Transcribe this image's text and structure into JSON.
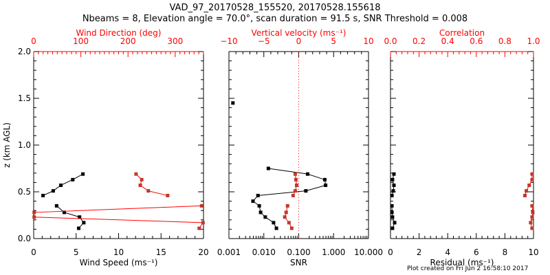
{
  "title": "VAD_97_20170528_155520, 20170528.155618",
  "subtitle": "Nbeams = 8, Elevation angle = 70.0°, scan duration = 91.5 s, SNR Threshold = 0.008",
  "footer": "Plot created on Fri Jun  2 16:58:10 2017",
  "colors": {
    "axis": "#000000",
    "secondary_axis": "#ff0000",
    "secondary_points": "#c0392b",
    "primary": "#000000"
  },
  "chart_data": [
    {
      "type": "line",
      "ylabel": "z (km AGL)",
      "ylim": [
        0,
        2.0
      ],
      "yticks": [
        "0.0",
        "0.5",
        "1.0",
        "1.5",
        "2.0"
      ],
      "xlabel": "Wind Speed (ms⁻¹)",
      "xlim": [
        0,
        20
      ],
      "xticks": [
        "0",
        "5",
        "10",
        "15",
        "20"
      ],
      "top_label": "Wind Direction (deg)",
      "top_lim": [
        0,
        360
      ],
      "top_ticks": [
        "0",
        "100",
        "200",
        "300"
      ],
      "series": [
        {
          "name": "Wind Speed",
          "axis": "bottom",
          "segments": [
            {
              "x": [
                1.1,
                2.3,
                3.2,
                4.6,
                5.8
              ],
              "y": [
                0.46,
                0.51,
                0.57,
                0.63,
                0.69
              ]
            },
            {
              "x": [
                2.7,
                3.6,
                5.4,
                5.9,
                5.3
              ],
              "y": [
                0.35,
                0.28,
                0.23,
                0.17,
                0.11
              ]
            }
          ]
        },
        {
          "name": "Wind Direction",
          "axis": "top",
          "segments": [
            {
              "x": [
                217,
                229,
                226,
                243,
                284
              ],
              "y": [
                0.69,
                0.63,
                0.57,
                0.51,
                0.46
              ]
            },
            {
              "x": [
                356,
                1,
                1,
                359,
                351
              ],
              "y": [
                0.35,
                0.28,
                0.23,
                0.17,
                0.11
              ]
            }
          ]
        }
      ]
    },
    {
      "type": "line",
      "xlabel": "SNR",
      "xscale": "log",
      "xlim": [
        0.001,
        10
      ],
      "xticks": [
        "0.001",
        "0.010",
        "0.100",
        "1.000",
        "10.000"
      ],
      "top_label": "Vertical velocity (ms⁻¹)",
      "top_lim": [
        -10,
        10
      ],
      "top_ticks": [
        "−10",
        "−5",
        "0",
        "5",
        "10"
      ],
      "series": [
        {
          "name": "SNR",
          "axis": "bottom",
          "segments": [
            {
              "x": [
                0.0013
              ],
              "y": [
                1.45
              ]
            },
            {
              "x": [
                0.0135,
                0.18,
                0.56,
                0.59,
                0.16,
                0.0068,
                0.0049,
                0.0074,
                0.0081,
                0.011,
                0.019,
                0.023
              ],
              "y": [
                0.75,
                0.69,
                0.63,
                0.57,
                0.51,
                0.46,
                0.4,
                0.35,
                0.28,
                0.23,
                0.17,
                0.11
              ]
            }
          ]
        },
        {
          "name": "Vertical velocity",
          "axis": "top",
          "segments": [
            {
              "x": [
                -0.5,
                -0.4,
                -0.3,
                -0.5,
                -0.8
              ],
              "y": [
                0.69,
                0.63,
                0.57,
                0.51,
                0.46
              ]
            },
            {
              "x": [
                -1.6,
                -1.8,
                -2.0,
                -1.4,
                -1.0
              ],
              "y": [
                0.35,
                0.28,
                0.23,
                0.17,
                0.11
              ]
            }
          ]
        }
      ],
      "reference_line": {
        "axis": "top",
        "value": 0
      }
    },
    {
      "type": "line",
      "xlabel": "Residual (ms⁻¹)",
      "xlim": [
        0,
        10
      ],
      "xticks": [
        "0",
        "2",
        "4",
        "6",
        "8",
        "10"
      ],
      "top_label": "Correlation",
      "top_lim": [
        0,
        1.0
      ],
      "top_ticks": [
        "0.0",
        "0.2",
        "0.4",
        "0.6",
        "0.8",
        "1.0"
      ],
      "series": [
        {
          "name": "Residual",
          "axis": "bottom",
          "segments": [
            {
              "x": [
                0.24,
                0.14,
                0.24,
                0.19,
                0.1
              ],
              "y": [
                0.69,
                0.63,
                0.57,
                0.51,
                0.46
              ]
            },
            {
              "x": [
                0.1,
                0.1,
                0.14,
                0.29,
                0.14
              ],
              "y": [
                0.35,
                0.28,
                0.23,
                0.17,
                0.11
              ]
            }
          ]
        },
        {
          "name": "Correlation",
          "axis": "top",
          "segments": [
            {
              "x": [
                0.99,
                0.99,
                0.97,
                0.95,
                0.94
              ],
              "y": [
                0.69,
                0.63,
                0.57,
                0.51,
                0.46
              ]
            },
            {
              "x": [
                0.99,
                0.995,
                0.99,
                0.98,
                0.99
              ],
              "y": [
                0.35,
                0.28,
                0.23,
                0.17,
                0.11
              ]
            }
          ]
        }
      ]
    }
  ]
}
